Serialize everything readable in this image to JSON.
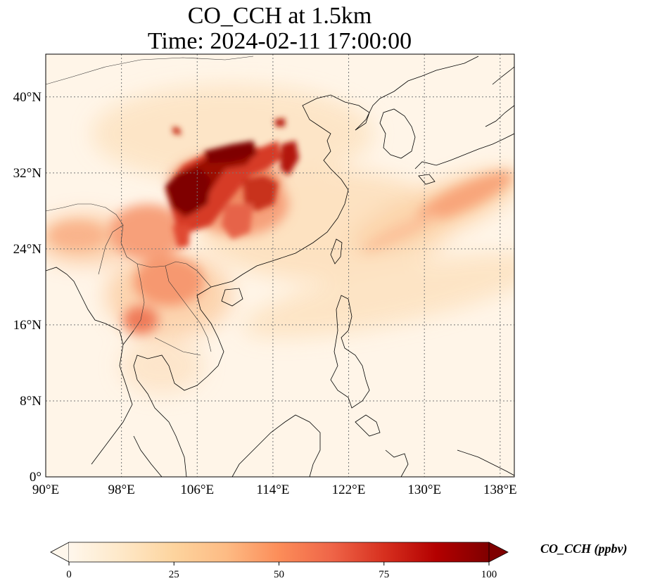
{
  "title": {
    "line1": "CO_CCH at 1.5km",
    "line2": "Time: 2024-02-11 17:00:00"
  },
  "map": {
    "projection": "PlateCarree",
    "lon_range": [
      90,
      139.5
    ],
    "lat_range": [
      0,
      44.5
    ],
    "gridlines": "dotted",
    "x_ticks": [
      {
        "lon": 90,
        "label": "90°E"
      },
      {
        "lon": 98,
        "label": "98°E"
      },
      {
        "lon": 106,
        "label": "106°E"
      },
      {
        "lon": 114,
        "label": "114°E"
      },
      {
        "lon": 122,
        "label": "122°E"
      },
      {
        "lon": 130,
        "label": "130°E"
      },
      {
        "lon": 138,
        "label": "138°E"
      }
    ],
    "y_ticks": [
      {
        "lat": 0,
        "label": "0°"
      },
      {
        "lat": 8,
        "label": "8°N"
      },
      {
        "lat": 16,
        "label": "16°N"
      },
      {
        "lat": 24,
        "label": "24°N"
      },
      {
        "lat": 32,
        "label": "32°N"
      },
      {
        "lat": 40,
        "label": "40°N"
      }
    ]
  },
  "colorbar": {
    "label": "CO_CCH (ppbv)",
    "colormap": "OrRd",
    "range": [
      0,
      100
    ],
    "extend": "both",
    "ticks": [
      "0",
      "25",
      "50",
      "75",
      "100"
    ],
    "colors": [
      "#fff7ec",
      "#fee8c8",
      "#fdd49e",
      "#fdbb84",
      "#fc8d59",
      "#ef6548",
      "#d7301f",
      "#b30000",
      "#7f0000"
    ]
  }
}
